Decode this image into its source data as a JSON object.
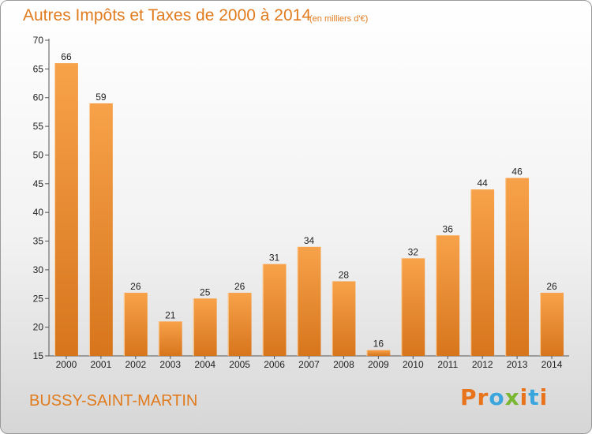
{
  "header": {
    "title": "Autres Impôts et Taxes de 2000 à 2014",
    "unit": "(en milliers d'€)"
  },
  "footer": {
    "town": "BUSSY-SAINT-MARTIN",
    "logo": "Proxiti"
  },
  "colors": {
    "accent": "#e07b1e",
    "bar_light": "#f7a24a",
    "bar_dark": "#d7751c",
    "logo_letters": [
      "#e8731a",
      "#e8731a",
      "#3aa6dd",
      "#79b631",
      "#e8731a",
      "#3aa6dd",
      "#e8731a"
    ]
  },
  "chart_data": {
    "type": "bar",
    "categories": [
      "2000",
      "2001",
      "2002",
      "2003",
      "2004",
      "2005",
      "2006",
      "2007",
      "2008",
      "2009",
      "2010",
      "2011",
      "2012",
      "2013",
      "2014"
    ],
    "values": [
      66,
      59,
      26,
      21,
      25,
      26,
      31,
      34,
      28,
      16,
      32,
      36,
      44,
      46,
      26
    ],
    "ylim": [
      15,
      70
    ],
    "yticks": [
      15,
      20,
      25,
      30,
      35,
      40,
      45,
      50,
      55,
      60,
      65,
      70
    ],
    "grid": false,
    "data_labels": true
  }
}
